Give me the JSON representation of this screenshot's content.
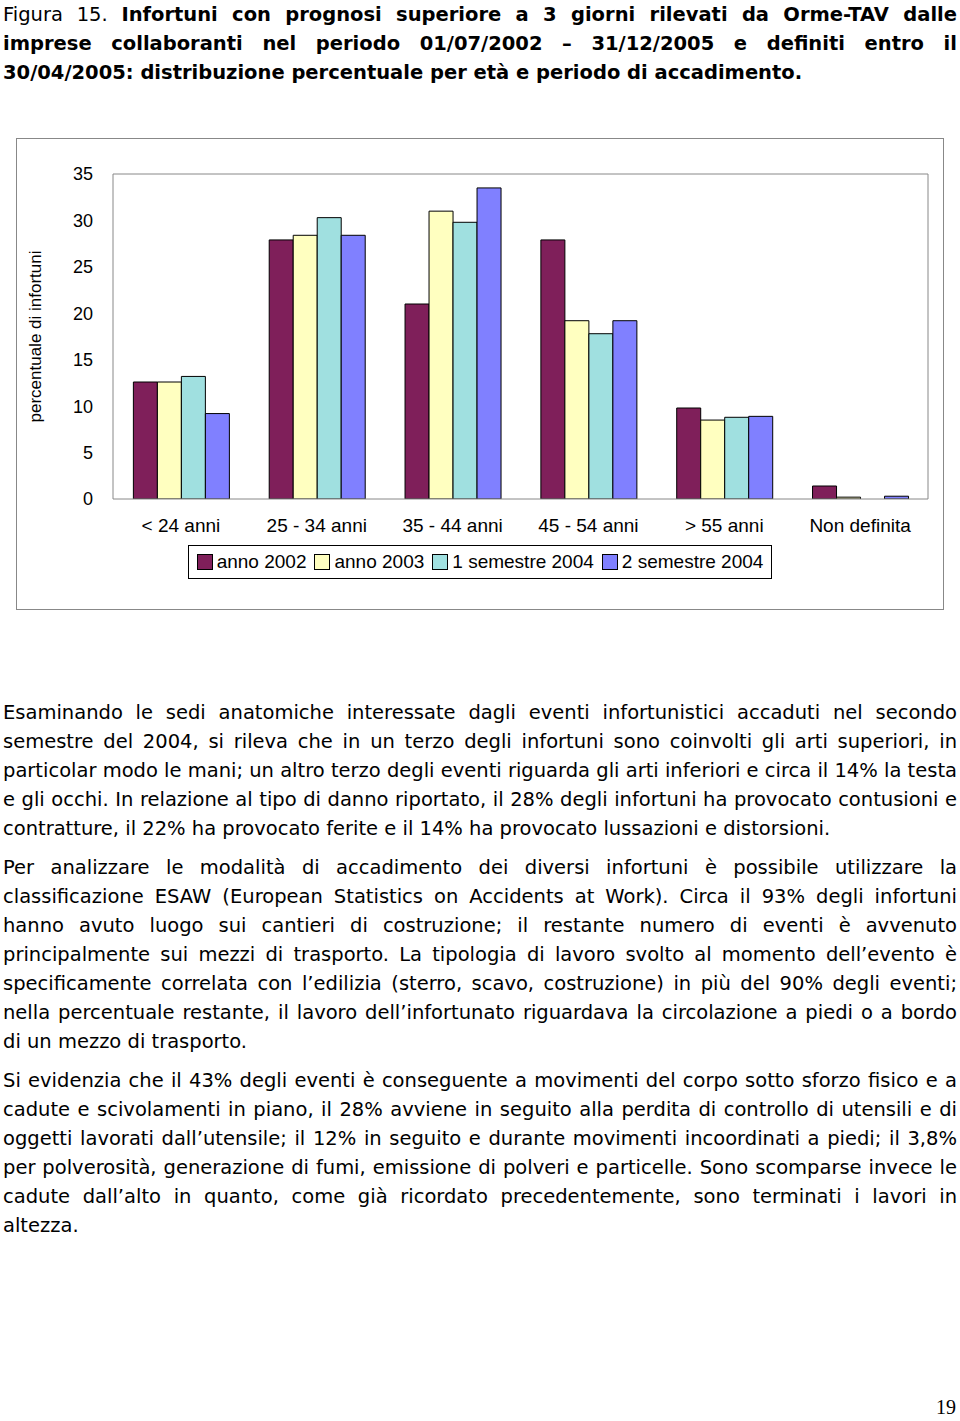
{
  "caption": {
    "label": "Figura 15.",
    "text": "Infortuni con prognosi superiore a 3 giorni rilevati da Orme-TAV dalle imprese collaboranti nel periodo 01/07/2002 – 31/12/2005 e definiti entro il 30/04/2005: distribuzione percentuale per età e periodo di accadimento."
  },
  "chart_data": {
    "type": "bar",
    "y_label": "percentuale di infortuni",
    "categories": [
      "< 24 anni",
      "25 - 34 anni",
      "35 - 44 anni",
      "45 - 54 anni",
      "> 55 anni",
      "Non definita"
    ],
    "series": [
      {
        "name": "anno 2002",
        "color": "#7f1f5a",
        "values": [
          12.6,
          27.9,
          21.0,
          27.9,
          9.8,
          1.4
        ]
      },
      {
        "name": "anno 2003",
        "color": "#ffffc0",
        "values": [
          12.6,
          28.4,
          31.0,
          19.2,
          8.5,
          0.2
        ]
      },
      {
        "name": "1 semestre 2004",
        "color": "#a0e0e0",
        "values": [
          13.2,
          30.3,
          29.8,
          17.8,
          8.8,
          0
        ]
      },
      {
        "name": "2 semestre 2004",
        "color": "#8080ff",
        "values": [
          9.2,
          28.4,
          33.5,
          19.2,
          8.9,
          0.3
        ]
      }
    ],
    "ylim": [
      0,
      35
    ],
    "yticks": [
      0,
      5,
      10,
      15,
      20,
      25,
      30,
      35
    ],
    "grid": false,
    "legend": "bottom"
  },
  "paragraphs": [
    "Esaminando le sedi anatomiche interessate dagli eventi infortunistici accaduti nel secondo semestre del 2004, si rileva che in un terzo degli infortuni sono coinvolti gli arti superiori, in particolar modo le mani; un altro terzo degli eventi riguarda gli arti inferiori e circa il 14% la testa e gli occhi. In relazione al tipo di danno riportato, il 28% degli infortuni ha provocato contusioni e contratture, il 22% ha provocato ferite e il 14% ha provocato lussazioni e distorsioni.",
    "Per analizzare le modalità di accadimento dei diversi infortuni è possibile utilizzare la classificazione ESAW (European Statistics on Accidents at Work). Circa il 93% degli infortuni hanno avuto luogo sui cantieri di costruzione; il restante numero di eventi è avvenuto principalmente sui mezzi di trasporto. La tipologia di lavoro svolto al momento dell’evento è specificamente correlata con l’edilizia (sterro, scavo, costruzione) in più del 90% degli eventi; nella percentuale restante, il lavoro dell’infortunato riguardava la circolazione a piedi o a bordo di un mezzo di trasporto.",
    "Si evidenzia che il 43% degli eventi è conseguente a movimenti del corpo sotto sforzo fisico e a cadute e scivolamenti in piano, il 28% avviene in seguito alla perdita di controllo di utensili e di oggetti lavorati dall’utensile; il 12% in seguito e durante movimenti incoordinati a piedi; il 3,8% per polverosità, generazione di fumi, emissione di polveri e particelle. Sono scomparse invece le cadute dall’alto in quanto, come già ricordato precedentemente, sono terminati i lavori in altezza."
  ],
  "page_number": 19
}
